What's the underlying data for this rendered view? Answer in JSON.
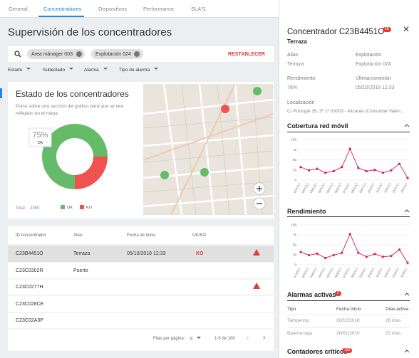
{
  "tabs": [
    "General",
    "Concentradores",
    "Dispositivos",
    "Performance",
    "SLA'S"
  ],
  "active_tab": 1,
  "main": {
    "title": "Supervisión de los concentradores",
    "chips": [
      "Área mánager 003",
      "Explotación 024"
    ],
    "reset": "RESTABLECER",
    "filters": [
      "Estado",
      "Subestado",
      "Alarma",
      "Tipo de alarma"
    ],
    "status_card": {
      "title": "Estado de los concentradores",
      "description": "Pulse sobre una sección del gráfico para que se vea reflejado en el mapa",
      "segments": [
        {
          "name": "OK",
          "value": 75,
          "color": "#66bb6a"
        },
        {
          "name": "KO",
          "value": 25,
          "color": "#ef5350"
        }
      ],
      "tooltip": {
        "value_label": "75%",
        "name": "OK"
      },
      "total_label": "Total",
      "total": 2350
    },
    "table": {
      "headers": [
        "ID concentrador",
        "Alias",
        "Fecha de inicio",
        "OK/KO"
      ],
      "rows": [
        {
          "id": "C23B4451O",
          "alias": "Terraza",
          "start": "05/10/2018 12:33",
          "status": "KO",
          "alarm": true,
          "selected": true
        },
        {
          "id": "C23C0302R",
          "alias": "Puerto"
        },
        {
          "id": "C23C0277H",
          "alarm": true
        },
        {
          "id": "C23C028CE"
        },
        {
          "id": "C23C02A3P"
        }
      ],
      "rows_per_page_label": "Filas por página:",
      "rows_per_page": 5,
      "range": "1-5 de 100"
    }
  },
  "detail": {
    "title": "Concentrador C23B4451O",
    "badge": 40,
    "subtitle": "Terraza",
    "fields": [
      {
        "label": "Alias",
        "value": "Terraza"
      },
      {
        "label": "Explotación",
        "value": "Explotación 024"
      },
      {
        "label": "Rendimiento",
        "value": "78%"
      },
      {
        "label": "Última conexión",
        "value": "05/10/2018 12.33"
      }
    ],
    "location_label": "Localización",
    "location": "C/ Portugal 35, 3º 1º 03003 - Alicante (Comunitat Valen...",
    "charts": [
      {
        "title": "Cobertura red móvil",
        "categories": [
          "01/07/17",
          "02/07/17",
          "03/07/17",
          "04/07/17",
          "05/07/17",
          "06/07/17",
          "07/07/17",
          "08/07/17",
          "09/07/17",
          "10/07/17",
          "11/07/17",
          "12/07/17",
          "13/07/17",
          "14/07/17"
        ],
        "values": [
          32,
          24,
          28,
          18,
          22,
          32,
          77,
          30,
          22,
          25,
          18,
          24,
          40,
          5
        ],
        "color": "#d81b60",
        "ylim": [
          0,
          100
        ],
        "yticks": [
          0,
          25,
          50,
          75,
          100
        ]
      },
      {
        "title": "Rendimiento",
        "categories": [
          "01/07/17",
          "02/07/17",
          "03/07/17",
          "04/07/17",
          "05/07/17",
          "06/07/17",
          "07/07/17",
          "08/07/17",
          "09/07/17",
          "10/07/17",
          "11/07/17",
          "12/07/17",
          "13/07/17",
          "14/07/17"
        ],
        "values": [
          32,
          24,
          28,
          17,
          24,
          30,
          77,
          30,
          20,
          27,
          20,
          22,
          38,
          5
        ],
        "color": "#d81b60",
        "ylim": [
          0,
          100
        ],
        "yticks": [
          0,
          25,
          50,
          75,
          100
        ]
      }
    ],
    "alarms": {
      "title": "Alarmas activas",
      "badge": 2,
      "headers": [
        "Tipo",
        "Fecha inicio",
        "Días activa"
      ],
      "rows": [
        [
          "Tampering",
          "20/12/2018",
          "26 días"
        ],
        [
          "Batería baja",
          "26/01/2019",
          "15 días"
        ]
      ]
    },
    "counters": {
      "title": "Contadores críticos",
      "badge": 120
    }
  }
}
